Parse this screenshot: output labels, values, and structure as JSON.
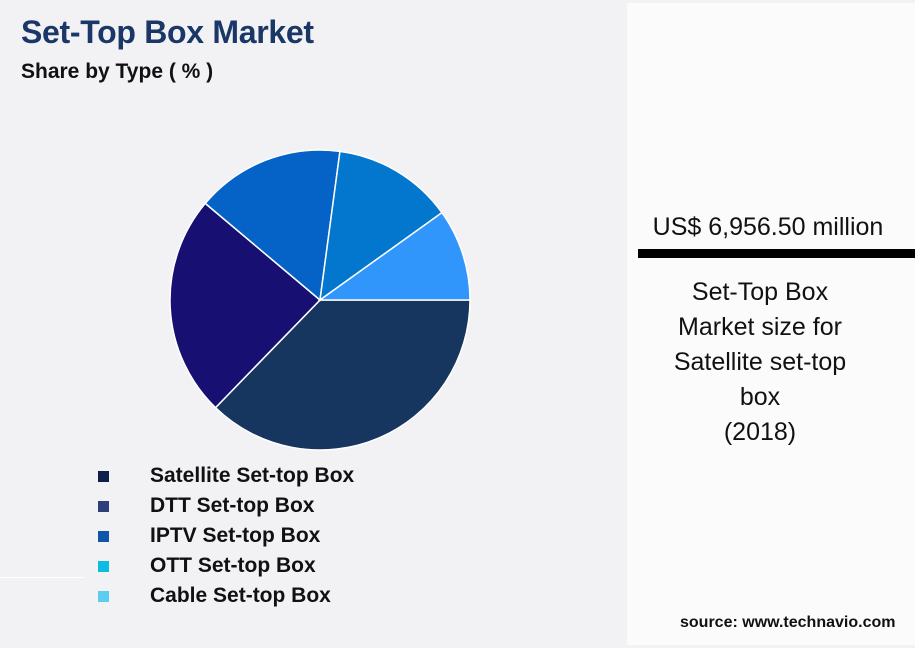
{
  "header": {
    "title": "Set-Top Box Market",
    "subtitle": "Share by Type ( % )"
  },
  "chart_data": {
    "type": "pie",
    "title": "Set-Top Box Market",
    "subtitle": "Share by Type ( % )",
    "categories": [
      "Satellite Set-top Box",
      "DTT Set-top Box",
      "IPTV Set-top Box",
      "OTT Set-top Box",
      "Cable Set-top Box"
    ],
    "values": [
      37.3,
      23.9,
      16.0,
      13.0,
      9.9
    ],
    "slice_colors": [
      "#17365f",
      "#170f72",
      "#0563c8",
      "#0377ce",
      "#3196fb"
    ],
    "legend_position": "bottom-left",
    "grid": false
  },
  "legend": {
    "items": [
      {
        "label": "Satellite Set-top Box",
        "color": "#0f1f4b"
      },
      {
        "label": "DTT Set-top Box",
        "color": "#2e3f7c"
      },
      {
        "label": "IPTV Set-top Box",
        "color": "#0f56a8"
      },
      {
        "label": "OTT Set-top Box",
        "color": "#0bbee0"
      },
      {
        "label": "Cable Set-top Box",
        "color": "#5bcdef"
      }
    ]
  },
  "panel": {
    "value": "US$ 6,956.50 million",
    "description": "Set-Top Box\nMarket size for\nSatellite set-top\nbox\n(2018)"
  },
  "footer": {
    "source": "source: www.technavio.com"
  }
}
